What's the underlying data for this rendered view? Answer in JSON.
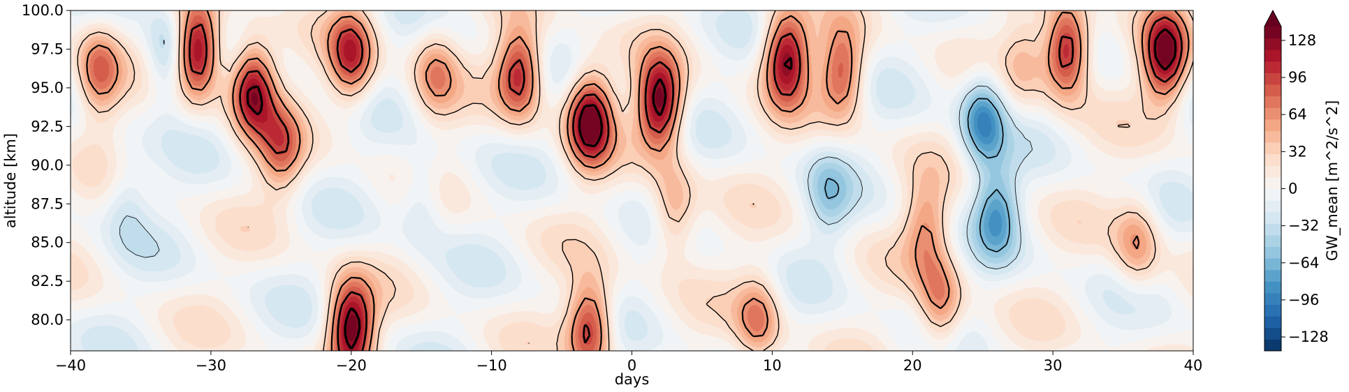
{
  "chart_data": {
    "type": "heatmap",
    "style": "filled contour plot with overlaid black contour lines (line thickness increases with magnitude)",
    "title": "",
    "xlabel": "days",
    "ylabel": "altitude [km]",
    "xlim": [
      -40,
      40
    ],
    "ylim": [
      78,
      100
    ],
    "x_ticks": [
      -40,
      -30,
      -20,
      -10,
      0,
      10,
      20,
      30,
      40
    ],
    "x_tick_labels": [
      "−40",
      "−30",
      "−20",
      "−10",
      "0",
      "10",
      "20",
      "30",
      "40"
    ],
    "y_ticks": [
      80,
      82.5,
      85,
      87.5,
      90,
      92.5,
      95,
      97.5,
      100
    ],
    "y_tick_labels": [
      "80.0",
      "82.5",
      "85.0",
      "87.5",
      "90.0",
      "92.5",
      "95.0",
      "97.5",
      "100.0"
    ],
    "grid": false,
    "colormap": "RdBu_r",
    "colorbar": {
      "label": "GW_mean [m^2/s^2]",
      "vmin": -140,
      "vmax": 140,
      "extend": "max",
      "ticks": [
        -128,
        -96,
        -64,
        -32,
        0,
        32,
        64,
        96,
        128
      ],
      "tick_labels": [
        "−128",
        "−96",
        "−64",
        "−32",
        "0",
        "32",
        "64",
        "96",
        "128"
      ]
    },
    "features": [
      {
        "day": -38,
        "alt": 96,
        "value": 80
      },
      {
        "day": -33,
        "alt": 97,
        "value": -60
      },
      {
        "day": -31,
        "alt": 97.5,
        "value": 140
      },
      {
        "day": -27,
        "alt": 95,
        "value": 130
      },
      {
        "day": -25,
        "alt": 91,
        "value": 70
      },
      {
        "day": -20,
        "alt": 97,
        "value": 100
      },
      {
        "day": -20,
        "alt": 79.5,
        "value": 140
      },
      {
        "day": -14,
        "alt": 96,
        "value": 60
      },
      {
        "day": -8,
        "alt": 96,
        "value": 110
      },
      {
        "day": -3,
        "alt": 93,
        "value": 140
      },
      {
        "day": -3,
        "alt": 79.5,
        "value": 110
      },
      {
        "day": 2,
        "alt": 94,
        "value": 140
      },
      {
        "day": 3,
        "alt": 87,
        "value": 60
      },
      {
        "day": 11,
        "alt": 97,
        "value": 130
      },
      {
        "day": 9,
        "alt": 80,
        "value": 70
      },
      {
        "day": 15,
        "alt": 96,
        "value": 90
      },
      {
        "day": 21,
        "alt": 86,
        "value": 60
      },
      {
        "day": 22,
        "alt": 81,
        "value": 70
      },
      {
        "day": 25,
        "alt": 93,
        "value": -90
      },
      {
        "day": 26,
        "alt": 87,
        "value": -70
      },
      {
        "day": 28,
        "alt": 97,
        "value": 40
      },
      {
        "day": 31,
        "alt": 97.5,
        "value": 130
      },
      {
        "day": 36,
        "alt": 85,
        "value": 60
      },
      {
        "day": 38,
        "alt": 97,
        "value": 130
      },
      {
        "day": 14,
        "alt": 88,
        "value": -40
      },
      {
        "day": -15,
        "alt": 88,
        "value": -35
      },
      {
        "day": -36,
        "alt": 88,
        "value": -30
      }
    ]
  }
}
